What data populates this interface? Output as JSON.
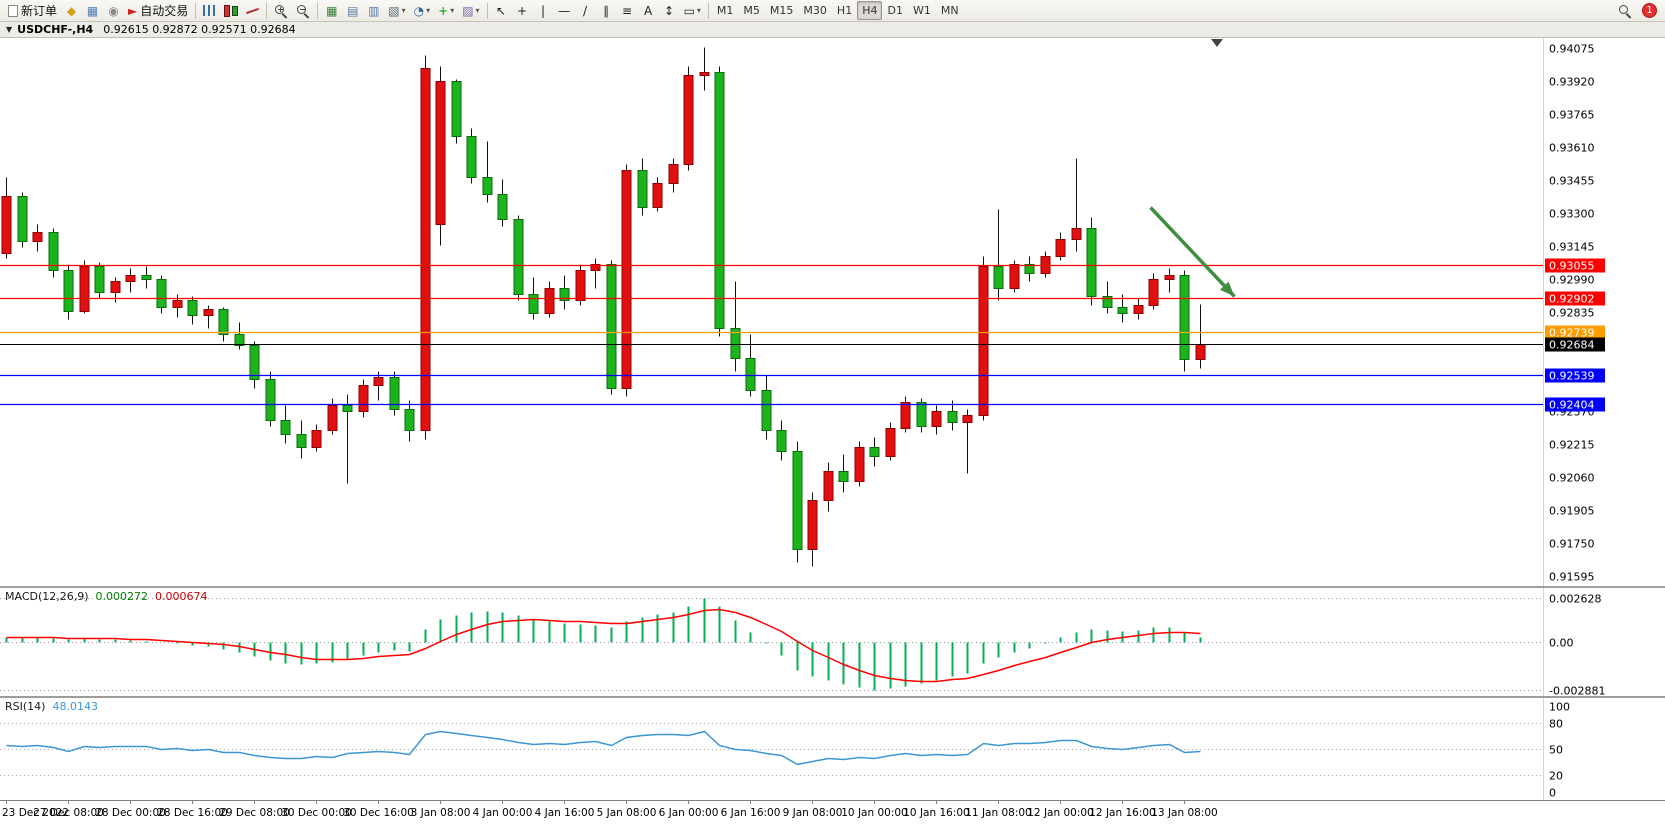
{
  "toolbar": {
    "buttons": [
      {
        "name": "new-order-button",
        "icon": "new-order-icon",
        "shape": "doc",
        "label": "新订单"
      },
      {
        "name": "symbols-icon-button",
        "icon": "symbols-icon",
        "glyph": "◆",
        "color": "#d4a017"
      },
      {
        "name": "data-window-icon-button",
        "icon": "data-window-icon",
        "glyph": "▦",
        "color": "#4f81bd"
      },
      {
        "name": "navigator-icon-button",
        "icon": "navigator-icon",
        "glyph": "◉",
        "color": "#888888"
      },
      {
        "name": "auto-trading-button",
        "icon": "autotrading-icon",
        "glyph": "►",
        "color": "#cc2222",
        "label": "自动交易",
        "sep_after": true
      },
      {
        "name": "bar-chart-button",
        "icon": "bar-chart-icon",
        "shape": "bars"
      },
      {
        "name": "candlestick-chart-button",
        "icon": "candlestick-icon",
        "shape": "candles"
      },
      {
        "name": "line-chart-button",
        "icon": "line-chart-icon",
        "shape": "linechart",
        "sep_after": true
      },
      {
        "name": "zoom-in-button",
        "icon": "zoom-in-icon",
        "shape": "mag",
        "sub": "+"
      },
      {
        "name": "zoom-out-button",
        "icon": "zoom-out-icon",
        "shape": "mag",
        "sub": "−",
        "sep_after": true
      },
      {
        "name": "tile-windows-button",
        "icon": "tile-windows-icon",
        "glyph": "▦",
        "color": "#3a7d3a"
      },
      {
        "name": "indicator-list-button",
        "icon": "indicator-list-icon",
        "glyph": "▤",
        "color": "#5577aa"
      },
      {
        "name": "objects-list-button",
        "icon": "objects-list-icon",
        "glyph": "▥",
        "color": "#5577aa"
      },
      {
        "name": "new-chart-button",
        "icon": "new-chart-icon",
        "glyph": "▧",
        "color": "#556677",
        "dropdown": true
      },
      {
        "name": "profiles-button",
        "icon": "profiles-icon",
        "glyph": "◔",
        "color": "#336699",
        "dropdown": true
      },
      {
        "name": "indicators-button",
        "icon": "add-indicator-icon",
        "glyph": "+",
        "color": "#009a0a",
        "dropdown": true
      },
      {
        "name": "templates-button",
        "icon": "template-icon",
        "glyph": "▨",
        "color": "#7a66aa",
        "dropdown": true,
        "sep_after": true
      },
      {
        "name": "cursor-button",
        "icon": "cursor-icon",
        "glyph": "↖",
        "color": "#222222"
      },
      {
        "name": "crosshair-button",
        "icon": "crosshair-icon",
        "glyph": "+",
        "color": "#222222"
      },
      {
        "name": "vertical-line-button",
        "icon": "vertical-line-icon",
        "glyph": "|",
        "color": "#222222"
      },
      {
        "name": "horizontal-line-button",
        "icon": "horizontal-line-icon",
        "glyph": "—",
        "color": "#222222"
      },
      {
        "name": "trendline-button",
        "icon": "trendline-icon",
        "glyph": "/",
        "color": "#222222"
      },
      {
        "name": "channel-button",
        "icon": "channel-icon",
        "glyph": "∥",
        "color": "#222222"
      },
      {
        "name": "fibonacci-button",
        "icon": "fibonacci-icon",
        "glyph": "≡",
        "color": "#222222"
      },
      {
        "name": "text-button",
        "icon": "text-icon",
        "glyph": "A",
        "color": "#222222"
      },
      {
        "name": "arrows-button",
        "icon": "arrows-icon",
        "glyph": "↕",
        "color": "#222222"
      },
      {
        "name": "shapes-button",
        "icon": "shapes-icon",
        "glyph": "▭",
        "color": "#222222",
        "dropdown": true,
        "sep_after": true
      }
    ],
    "timeframes": [
      "M1",
      "M5",
      "M15",
      "M30",
      "H1",
      "H4",
      "D1",
      "W1",
      "MN"
    ],
    "active_timeframe": "H4",
    "notification_count": "1"
  },
  "chart_title": {
    "menu_glyph": "▼",
    "symbol_period": "USDCHF-,H4",
    "ohlc_text": "0.92615 0.92872 0.92571 0.92684"
  },
  "macd": {
    "label": "MACD(12,26,9)",
    "value1": "0.000272",
    "value2": "0.000674",
    "axis": [
      "0.002628",
      "0.00",
      "-0.002881"
    ]
  },
  "rsi": {
    "label": "RSI(14)",
    "value": "48.0143",
    "axis": [
      "100",
      "80",
      "50",
      "20",
      "0"
    ]
  },
  "chart_data": {
    "type": "candlestick",
    "symbol": "USDCHF-",
    "timeframe": "H4",
    "title": "USDCHF-,H4",
    "price_range": [
      0.91548,
      0.94122
    ],
    "price_axis_ticks": [
      "0.94075",
      "0.93920",
      "0.93765",
      "0.93610",
      "0.93455",
      "0.93300",
      "0.93145",
      "0.92990",
      "0.92835",
      "0.92680",
      "0.92525",
      "0.92370",
      "0.92215",
      "0.92060",
      "0.91905",
      "0.91750",
      "0.91595"
    ],
    "time_label_step": 4,
    "time_labels": [
      "23 Dec 2022",
      "27 Dec 08:00",
      "28 Dec 00:00",
      "28 Dec 16:00",
      "29 Dec 08:00",
      "30 Dec 00:00",
      "30 Dec 16:00",
      "3 Jan 08:00",
      "4 Jan 00:00",
      "4 Jan 16:00",
      "5 Jan 08:00",
      "6 Jan 00:00",
      "6 Jan 16:00",
      "9 Jan 08:00",
      "10 Jan 00:00",
      "10 Jan 16:00",
      "11 Jan 08:00",
      "12 Jan 00:00",
      "12 Jan 16:00",
      "13 Jan 08:00"
    ],
    "up_color": "#e01010",
    "up_border": "#8f0000",
    "down_color": "#1cb41c",
    "down_border": "#0b6a0b",
    "macd_color": "#00b050",
    "macd_signal_color": "#ff0000",
    "rsi_color": "#3c96d2",
    "candles": [
      [
        0.9311,
        0.9347,
        0.9309,
        0.9338
      ],
      [
        0.9338,
        0.934,
        0.9314,
        0.9317
      ],
      [
        0.9317,
        0.9325,
        0.9312,
        0.9321
      ],
      [
        0.9321,
        0.9323,
        0.93,
        0.9303
      ],
      [
        0.9303,
        0.9306,
        0.928,
        0.9284
      ],
      [
        0.9284,
        0.9308,
        0.9283,
        0.9305
      ],
      [
        0.9305,
        0.9307,
        0.929,
        0.9293
      ],
      [
        0.9293,
        0.93,
        0.9288,
        0.9298
      ],
      [
        0.9298,
        0.9304,
        0.9293,
        0.9301
      ],
      [
        0.9301,
        0.9305,
        0.9295,
        0.9299
      ],
      [
        0.9299,
        0.9301,
        0.9283,
        0.9286
      ],
      [
        0.9286,
        0.9292,
        0.9281,
        0.9289
      ],
      [
        0.9289,
        0.9291,
        0.9278,
        0.9282
      ],
      [
        0.9282,
        0.9287,
        0.9276,
        0.9285
      ],
      [
        0.9285,
        0.9286,
        0.927,
        0.9273
      ],
      [
        0.9273,
        0.9279,
        0.9266,
        0.9268
      ],
      [
        0.9268,
        0.927,
        0.9248,
        0.9252
      ],
      [
        0.9252,
        0.9256,
        0.923,
        0.9233
      ],
      [
        0.9233,
        0.924,
        0.9222,
        0.9226
      ],
      [
        0.9226,
        0.9233,
        0.9215,
        0.922
      ],
      [
        0.922,
        0.9231,
        0.9218,
        0.9228
      ],
      [
        0.9228,
        0.9243,
        0.9226,
        0.924
      ],
      [
        0.924,
        0.9245,
        0.9203,
        0.9237
      ],
      [
        0.9237,
        0.9252,
        0.9234,
        0.9249
      ],
      [
        0.9249,
        0.9256,
        0.9242,
        0.9253
      ],
      [
        0.9253,
        0.9256,
        0.9235,
        0.9238
      ],
      [
        0.9238,
        0.9242,
        0.9223,
        0.9228
      ],
      [
        0.9228,
        0.9404,
        0.9224,
        0.9398
      ],
      [
        0.9325,
        0.9399,
        0.9315,
        0.9392
      ],
      [
        0.9392,
        0.9393,
        0.9363,
        0.9366
      ],
      [
        0.9366,
        0.937,
        0.9344,
        0.9347
      ],
      [
        0.9347,
        0.9364,
        0.9335,
        0.9339
      ],
      [
        0.9339,
        0.9346,
        0.9324,
        0.9327
      ],
      [
        0.9327,
        0.9329,
        0.9289,
        0.9292
      ],
      [
        0.9292,
        0.93,
        0.928,
        0.9283
      ],
      [
        0.9283,
        0.9298,
        0.9281,
        0.9295
      ],
      [
        0.9295,
        0.9301,
        0.9285,
        0.9289
      ],
      [
        0.9289,
        0.9306,
        0.9287,
        0.9303
      ],
      [
        0.9303,
        0.9309,
        0.9295,
        0.9306
      ],
      [
        0.9306,
        0.9308,
        0.9245,
        0.9248
      ],
      [
        0.9248,
        0.9353,
        0.9244,
        0.935
      ],
      [
        0.935,
        0.9356,
        0.9329,
        0.9333
      ],
      [
        0.9333,
        0.9347,
        0.9331,
        0.9344
      ],
      [
        0.9344,
        0.9356,
        0.934,
        0.9353
      ],
      [
        0.9353,
        0.9399,
        0.935,
        0.9395
      ],
      [
        0.9395,
        0.9408,
        0.9388,
        0.9396
      ],
      [
        0.9396,
        0.9399,
        0.9272,
        0.9276
      ],
      [
        0.9276,
        0.9298,
        0.9256,
        0.9262
      ],
      [
        0.9262,
        0.9273,
        0.9244,
        0.9247
      ],
      [
        0.9247,
        0.9254,
        0.9224,
        0.9228
      ],
      [
        0.9228,
        0.9233,
        0.9214,
        0.9218
      ],
      [
        0.9218,
        0.9223,
        0.9166,
        0.9172
      ],
      [
        0.9172,
        0.9199,
        0.9164,
        0.9195
      ],
      [
        0.9195,
        0.9213,
        0.919,
        0.9209
      ],
      [
        0.9209,
        0.9217,
        0.9199,
        0.9204
      ],
      [
        0.9204,
        0.9223,
        0.9202,
        0.922
      ],
      [
        0.922,
        0.9225,
        0.9211,
        0.9216
      ],
      [
        0.9216,
        0.9232,
        0.9214,
        0.9229
      ],
      [
        0.9229,
        0.9244,
        0.9227,
        0.9241
      ],
      [
        0.9241,
        0.9243,
        0.9227,
        0.923
      ],
      [
        0.923,
        0.924,
        0.9226,
        0.9237
      ],
      [
        0.9237,
        0.9242,
        0.9228,
        0.9232
      ],
      [
        0.9232,
        0.9238,
        0.9208,
        0.9235
      ],
      [
        0.9235,
        0.931,
        0.9233,
        0.9305
      ],
      [
        0.9305,
        0.9332,
        0.9289,
        0.9295
      ],
      [
        0.9295,
        0.9308,
        0.9293,
        0.9306
      ],
      [
        0.9306,
        0.931,
        0.9298,
        0.9302
      ],
      [
        0.9302,
        0.9312,
        0.93,
        0.931
      ],
      [
        0.931,
        0.9321,
        0.9308,
        0.9318
      ],
      [
        0.9318,
        0.9356,
        0.9312,
        0.9323
      ],
      [
        0.9323,
        0.9328,
        0.9287,
        0.9291
      ],
      [
        0.9291,
        0.9298,
        0.9283,
        0.9286
      ],
      [
        0.9286,
        0.9292,
        0.9279,
        0.9283
      ],
      [
        0.9283,
        0.929,
        0.928,
        0.9287
      ],
      [
        0.9287,
        0.9302,
        0.9285,
        0.9299
      ],
      [
        0.9299,
        0.9304,
        0.9293,
        0.9301
      ],
      [
        0.9301,
        0.9303,
        0.9256,
        0.92615
      ],
      [
        0.92615,
        0.92872,
        0.92571,
        0.92684
      ]
    ],
    "levels": [
      {
        "price": 0.93055,
        "label": "0.93055",
        "color": "#ff0000"
      },
      {
        "price": 0.92902,
        "label": "0.92902",
        "color": "#ff0000"
      },
      {
        "price": 0.92739,
        "label": "0.92739",
        "color": "#ff9c00"
      },
      {
        "price": 0.92539,
        "label": "0.92539",
        "color": "#0000ff"
      },
      {
        "price": 0.92404,
        "label": "0.92404",
        "color": "#0000ff"
      }
    ],
    "current_price": {
      "price": 0.92684,
      "label": "0.92684",
      "color": "#000000"
    },
    "arrow_annotation": {
      "from_index": 73.8,
      "from_price": 0.9333,
      "to_index": 79.2,
      "to_price": 0.9291,
      "color": "#3f8f3f"
    },
    "macd_ylim": [
      -0.003228,
      0.0032
    ],
    "macd_histogram": [
      0.0003,
      0.00028,
      0.0003,
      0.00024,
      0.00015,
      0.0002,
      0.00018,
      0.00016,
      0.00012,
      6e-05,
      -4e-05,
      -0.0001,
      -0.0002,
      -0.00026,
      -0.00042,
      -0.00058,
      -0.00085,
      -0.0011,
      -0.00126,
      -0.00135,
      -0.00128,
      -0.00118,
      -0.001,
      -0.00078,
      -0.00058,
      -0.00048,
      -0.00056,
      0.00075,
      0.00135,
      0.0016,
      0.00175,
      0.00182,
      0.00176,
      0.00158,
      0.00138,
      0.00122,
      0.00112,
      0.00108,
      0.00102,
      0.00088,
      0.00125,
      0.0015,
      0.00168,
      0.0018,
      0.00215,
      0.002628,
      0.0021,
      0.0013,
      0.0006,
      -0.0001,
      -0.0008,
      -0.0017,
      -0.00205,
      -0.00225,
      -0.0025,
      -0.00268,
      -0.002881,
      -0.00278,
      -0.00262,
      -0.00246,
      -0.00225,
      -0.00205,
      -0.00185,
      -0.00128,
      -0.0009,
      -0.00062,
      -0.00035,
      -0.0001,
      0.0003,
      0.0006,
      0.00075,
      0.0007,
      0.00065,
      0.0007,
      0.00085,
      0.0009,
      0.0006,
      0.000272
    ],
    "rsi_levels": [
      80,
      50,
      20
    ],
    "rsi_values": [
      55,
      54,
      55,
      52,
      48,
      53,
      52,
      53,
      54,
      53,
      50,
      51,
      49,
      50,
      47,
      46,
      43,
      41,
      40,
      39,
      42,
      41,
      45,
      47,
      48,
      47,
      44,
      68,
      71,
      69,
      66,
      64,
      62,
      58,
      56,
      57,
      56,
      58,
      59,
      55,
      64,
      66,
      67,
      67,
      66,
      71,
      55,
      50,
      49,
      45,
      43,
      33,
      36,
      39,
      38,
      41,
      40,
      43,
      45,
      43,
      44,
      43,
      44,
      57,
      55,
      57,
      57,
      58,
      60,
      61,
      53,
      51,
      50,
      52,
      55,
      56,
      47,
      48.0143
    ]
  }
}
